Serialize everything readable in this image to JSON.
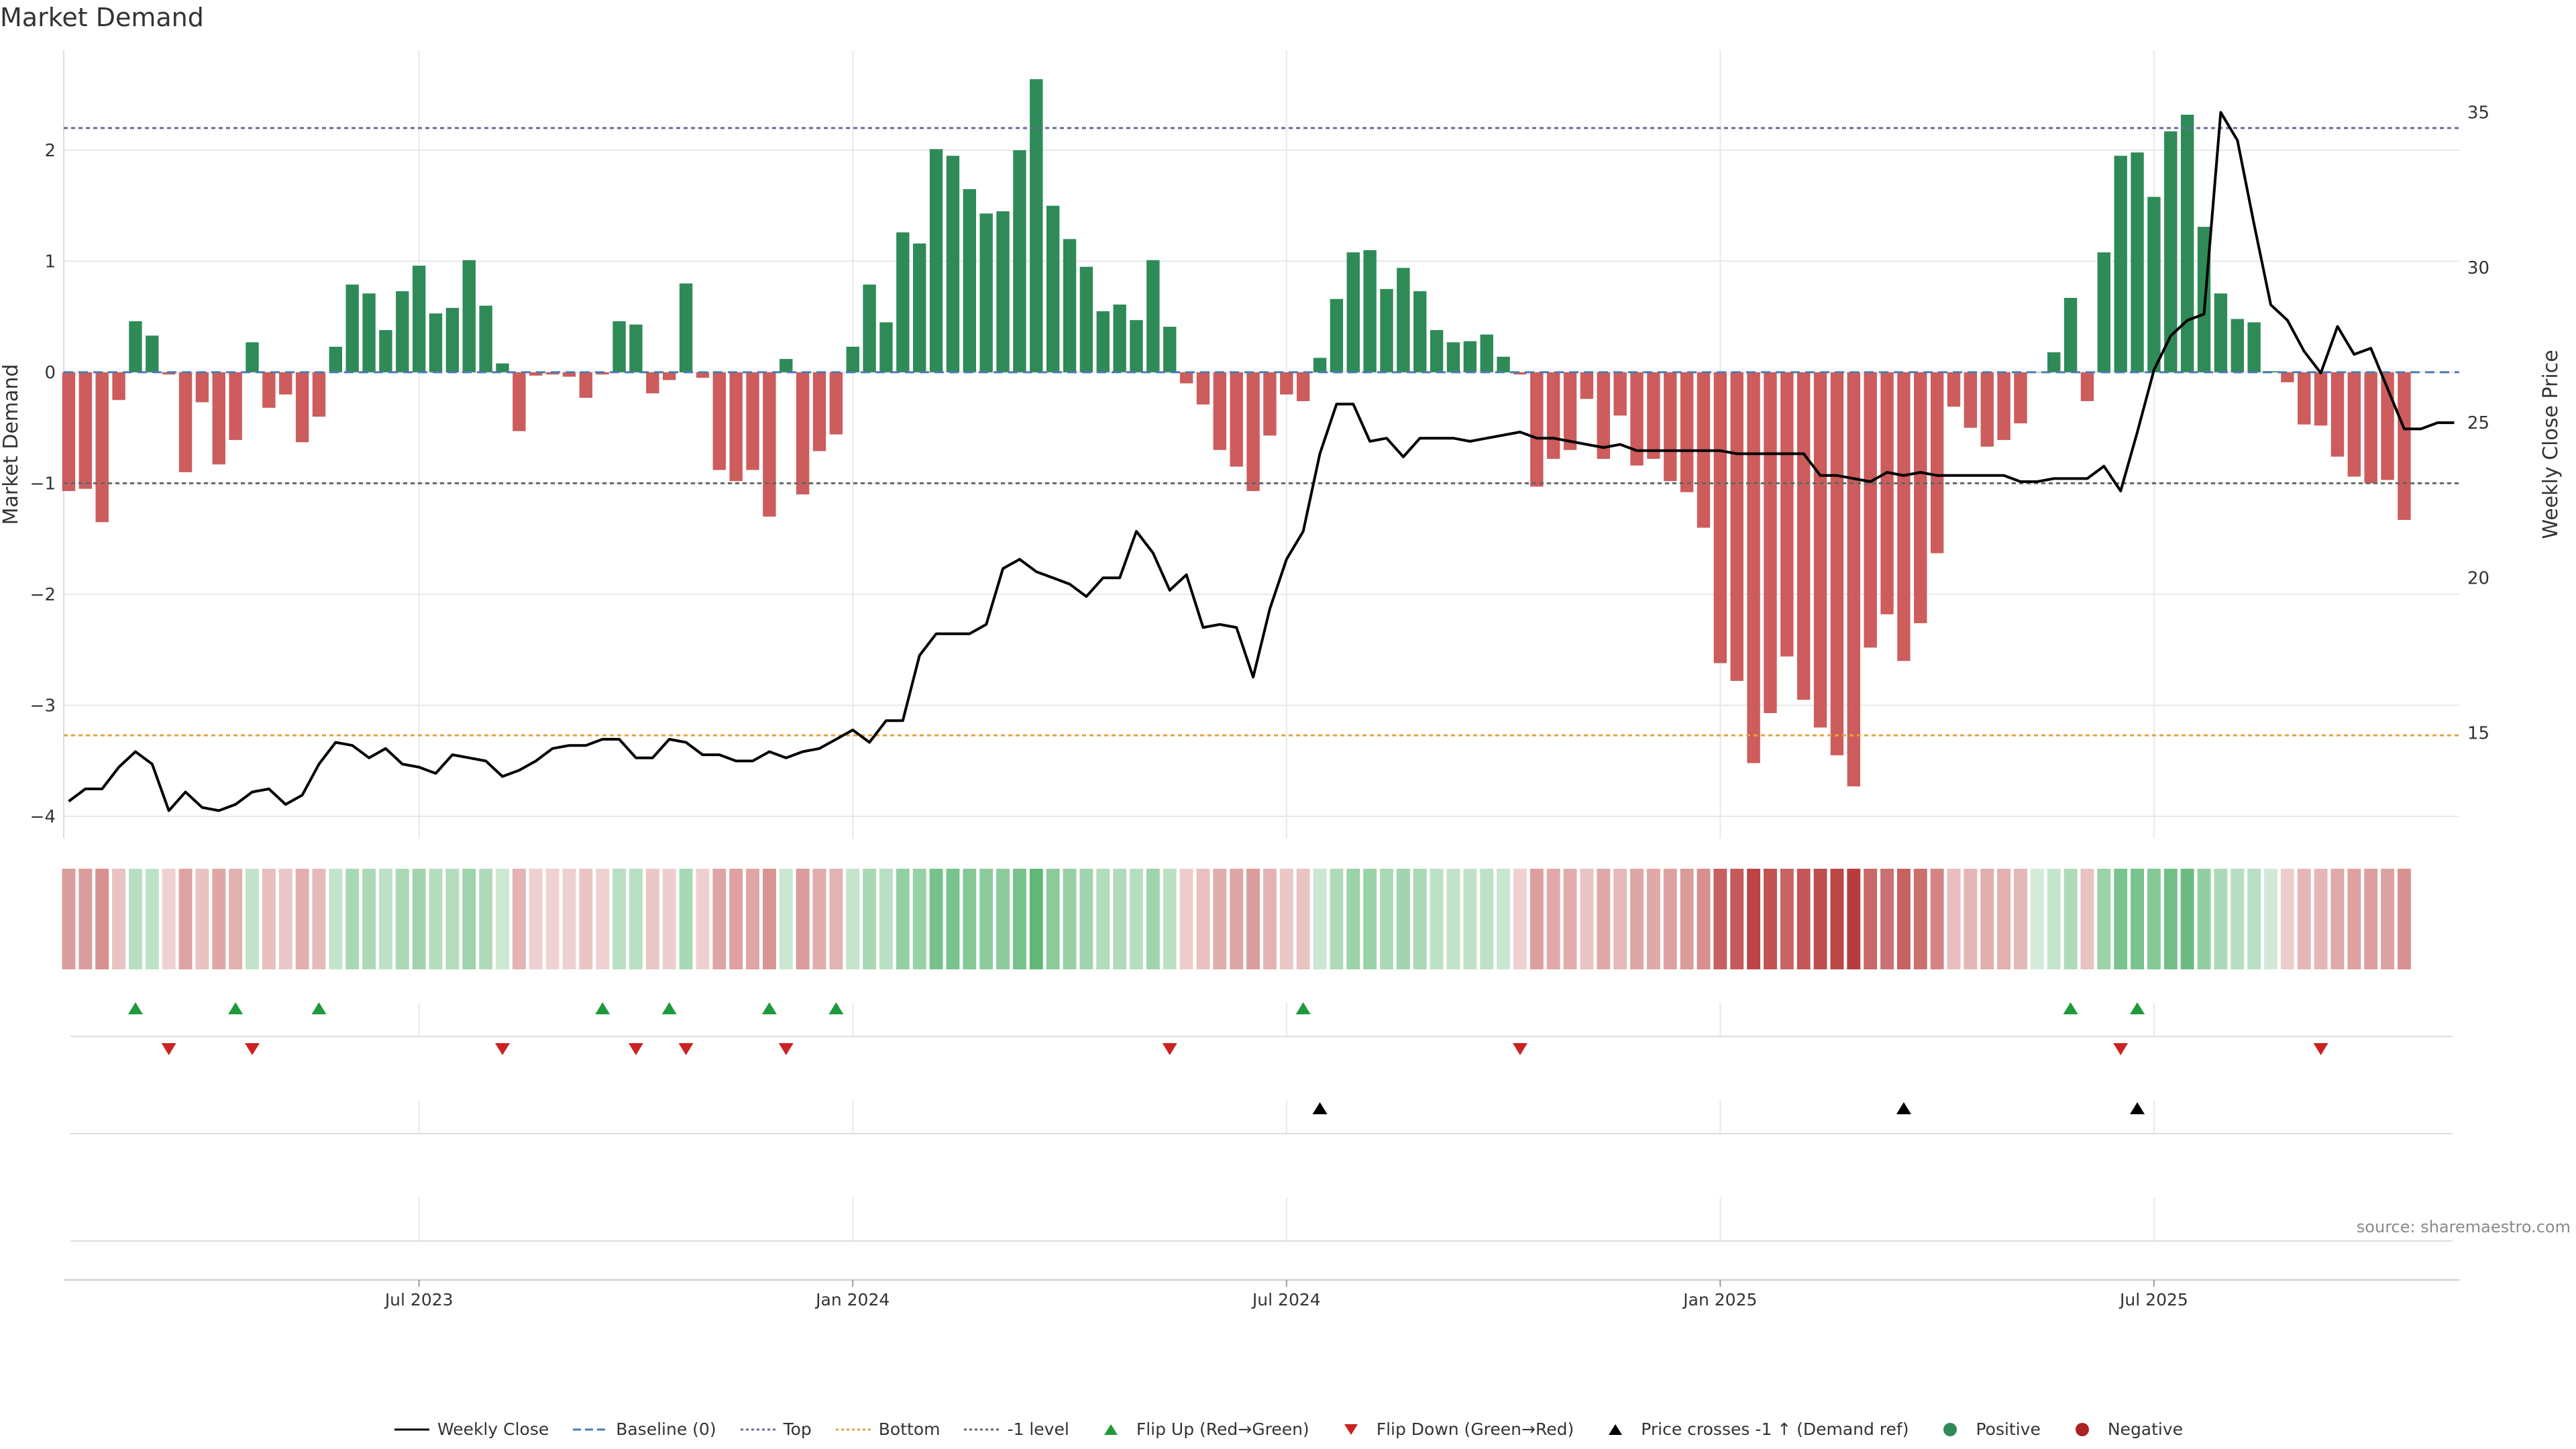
{
  "title": "Market Demand",
  "source": "source: sharemaestro.com",
  "colors": {
    "positive": "#2e8b57",
    "negative": "#cd5c5c",
    "price": "#000000",
    "top": "#6a6a9a",
    "bottom": "#e8a040",
    "level": "#666666",
    "flip_up": "#1f9a3a",
    "flip_down": "#cc2222",
    "cross": "#000000",
    "grid": "#e8e8e8"
  },
  "legend": [
    {
      "label": "Weekly Close",
      "icon": "solid-line",
      "color": "#000000"
    },
    {
      "label": "Baseline (0)",
      "icon": "dashed-line",
      "color": "#4a7ab5"
    },
    {
      "label": "Top",
      "icon": "dotted-line",
      "color": "#6a6a9a"
    },
    {
      "label": "Bottom",
      "icon": "dotted-line",
      "color": "#e8a040"
    },
    {
      "label": "-1 level",
      "icon": "dotted-line",
      "color": "#666666"
    },
    {
      "label": "Flip Up (Red→Green)",
      "icon": "triangle-up",
      "color": "#1f9a3a"
    },
    {
      "label": "Flip Down (Green→Red)",
      "icon": "triangle-down",
      "color": "#cc2222"
    },
    {
      "label": "Price crosses -1 ↑ (Demand ref)",
      "icon": "triangle-up",
      "color": "#000000"
    },
    {
      "label": "Positive",
      "icon": "dot",
      "color": "#2e8b57"
    },
    {
      "label": "Negative",
      "icon": "dot",
      "color": "#aa2222"
    }
  ],
  "chart_data": {
    "type": "bar",
    "title": "Market Demand",
    "ylabel": "Market Demand",
    "y2label": "Weekly Close Price",
    "ylim": [
      -4.2,
      2.9
    ],
    "y2lim": [
      11.6,
      37.0
    ],
    "yticks": [
      2,
      1,
      0,
      -1,
      -2,
      -3,
      -4
    ],
    "y2ticks": [
      35,
      30,
      25,
      20,
      15
    ],
    "xticks": [
      {
        "label": "Jul 2023",
        "week": 21
      },
      {
        "label": "Jan 2024",
        "week": 47
      },
      {
        "label": "Jul 2024",
        "week": 73
      },
      {
        "label": "Jan 2025",
        "week": 99
      },
      {
        "label": "Jul 2025",
        "week": 125
      }
    ],
    "x_range": [
      -0.3,
      143.3
    ],
    "reference_lines": {
      "baseline": 0,
      "top": 2.2,
      "bottom": -3.27,
      "minus_one_level": -1
    },
    "demand": [
      -1.07,
      -1.05,
      -1.35,
      -0.25,
      0.46,
      0.33,
      -0.02,
      -0.9,
      -0.27,
      -0.83,
      -0.61,
      0.27,
      -0.32,
      -0.2,
      -0.63,
      -0.4,
      0.23,
      0.79,
      0.71,
      0.38,
      0.73,
      0.96,
      0.53,
      0.58,
      1.01,
      0.6,
      0.08,
      -0.53,
      -0.03,
      -0.02,
      -0.04,
      -0.23,
      -0.02,
      0.46,
      0.43,
      -0.19,
      -0.07,
      0.8,
      -0.05,
      -0.88,
      -0.98,
      -0.88,
      -1.3,
      0.12,
      -1.1,
      -0.71,
      -0.56,
      0.23,
      0.79,
      0.45,
      1.26,
      1.16,
      2.01,
      1.95,
      1.65,
      1.43,
      1.45,
      2.0,
      2.64,
      1.5,
      1.2,
      0.95,
      0.55,
      0.61,
      0.47,
      1.01,
      0.41,
      -0.1,
      -0.29,
      -0.7,
      -0.85,
      -1.07,
      -0.57,
      -0.2,
      -0.26,
      0.13,
      0.66,
      1.08,
      1.1,
      0.75,
      0.94,
      0.73,
      0.38,
      0.27,
      0.28,
      0.34,
      0.14,
      -0.02,
      -1.03,
      -0.78,
      -0.7,
      -0.24,
      -0.78,
      -0.39,
      -0.84,
      -0.78,
      -0.98,
      -1.08,
      -1.4,
      -2.62,
      -2.78,
      -3.52,
      -3.07,
      -2.56,
      -2.95,
      -3.2,
      -3.45,
      -3.73,
      -2.48,
      -2.18,
      -2.6,
      -2.26,
      -1.63,
      -0.31,
      -0.5,
      -0.67,
      -0.61,
      -0.46,
      0.0,
      0.18,
      0.67,
      -0.26,
      1.08,
      1.95,
      1.98,
      1.58,
      2.17,
      2.32,
      1.31,
      0.71,
      0.48,
      0.45,
      0.01,
      -0.09,
      -0.47,
      -0.48,
      -0.76,
      -0.94,
      -1.0,
      -0.97,
      -1.33
    ],
    "weekly_close": [
      12.8,
      13.2,
      13.2,
      13.9,
      14.4,
      14.0,
      12.5,
      13.1,
      12.6,
      12.5,
      12.7,
      13.1,
      13.2,
      12.7,
      13.0,
      14.0,
      14.7,
      14.6,
      14.2,
      14.5,
      14.0,
      13.9,
      13.7,
      14.3,
      14.2,
      14.1,
      13.6,
      13.8,
      14.1,
      14.5,
      14.6,
      14.6,
      14.8,
      14.8,
      14.2,
      14.2,
      14.8,
      14.7,
      14.3,
      14.3,
      14.1,
      14.1,
      14.4,
      14.2,
      14.4,
      14.5,
      14.8,
      15.1,
      14.7,
      15.4,
      15.4,
      17.5,
      18.2,
      18.2,
      18.2,
      18.5,
      20.3,
      20.6,
      20.2,
      20.0,
      19.8,
      19.4,
      20.0,
      20.0,
      21.5,
      20.8,
      19.6,
      20.1,
      18.4,
      18.5,
      18.4,
      16.8,
      19.0,
      20.6,
      21.5,
      24.0,
      25.6,
      25.6,
      24.4,
      24.5,
      23.9,
      24.5,
      24.5,
      24.5,
      24.4,
      24.5,
      24.6,
      24.7,
      24.5,
      24.5,
      24.4,
      24.3,
      24.2,
      24.3,
      24.1,
      24.1,
      24.1,
      24.1,
      24.1,
      24.1,
      24.0,
      24.0,
      24.0,
      24.0,
      24.0,
      23.3,
      23.3,
      23.2,
      23.1,
      23.4,
      23.3,
      23.4,
      23.3,
      23.3,
      23.3,
      23.3,
      23.3,
      23.1,
      23.1,
      23.2,
      23.2,
      23.2,
      23.6,
      22.8,
      24.7,
      26.7,
      27.8,
      28.3,
      28.5,
      35.0,
      34.1,
      31.4,
      28.8,
      28.3,
      27.3,
      26.6,
      28.1,
      27.2,
      27.4,
      26.1,
      24.8,
      24.8,
      25.0,
      25.0
    ],
    "flip_up_weeks": [
      4,
      10,
      15,
      32,
      36,
      42,
      46,
      74,
      120,
      124
    ],
    "flip_down_weeks": [
      6,
      11,
      26,
      34,
      37,
      43,
      66,
      87,
      123,
      135
    ],
    "price_cross_weeks": [
      75,
      110,
      124
    ]
  }
}
